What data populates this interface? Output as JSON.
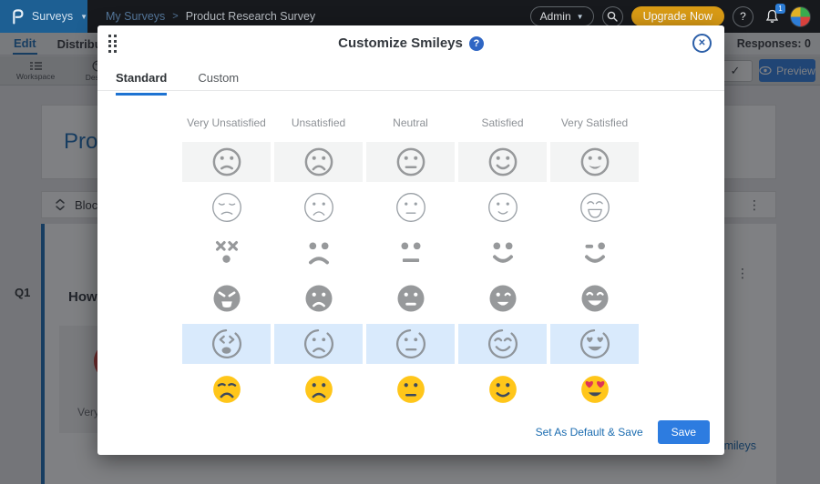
{
  "colors": {
    "navbar_bg": "#17191d",
    "logo_blue": "#1d5f93",
    "accent_blue": "#1a6bb3",
    "link_blue": "#1b6cb0",
    "save_blue": "#2d7ce0",
    "upgrade_orange": "#d99b15",
    "smiley_gray": "#97999b",
    "thin_gray": "#9aa0a6",
    "sketch_gray": "#8f959b",
    "emoji_yellow": "#ffc61a",
    "emoji_features": "#3e4a5c",
    "heart_red": "#dd3558",
    "cell_bg": "#f3f4f4",
    "selected_bg": "#d9eafc",
    "red_smiley": "#d8413c"
  },
  "navbar": {
    "logo": "P",
    "product_menu": "Surveys",
    "breadcrumb": {
      "parent": "My Surveys",
      "sep": ">",
      "current": "Product Research Survey"
    },
    "admin_label": "Admin",
    "upgrade_label": "Upgrade Now",
    "help_glyph": "?",
    "bell_badge": "1"
  },
  "subnav": {
    "tab_edit": "Edit",
    "tab_distribute": "Distribute",
    "right_fragment": "s",
    "responses_label": "Responses: 0"
  },
  "toolbar": {
    "workspace_label": "Workspace",
    "design_label": "Design",
    "check_glyph": "✓",
    "preview_label": "Preview"
  },
  "background": {
    "survey_title": "Product Research Survey",
    "block_label": "Block",
    "question_number": "Q1",
    "question_fragment": "How s",
    "option_label": "Very Unsatisfied",
    "smileys_link": "Customize Smileys"
  },
  "modal": {
    "title": "Customize Smileys",
    "help_glyph": "?",
    "close_glyph": "✕",
    "tabs": [
      {
        "label": "Standard",
        "active": true
      },
      {
        "label": "Custom",
        "active": false
      }
    ],
    "smiley_grid": {
      "columns": [
        "Very Unsatisfied",
        "Unsatisfied",
        "Neutral",
        "Satisfied",
        "Very Satisfied"
      ],
      "moods": [
        "very-unsatisfied",
        "unsatisfied",
        "neutral",
        "satisfied",
        "very-satisfied"
      ],
      "rows": [
        {
          "style": "outline-bold",
          "boxed": true,
          "selected": false
        },
        {
          "style": "outline-thin",
          "boxed": false,
          "selected": false
        },
        {
          "style": "abstract",
          "boxed": false,
          "selected": false
        },
        {
          "style": "solid",
          "boxed": false,
          "selected": false
        },
        {
          "style": "sketch",
          "boxed": false,
          "selected": true
        },
        {
          "style": "emoji",
          "boxed": false,
          "selected": false
        }
      ]
    },
    "footer": {
      "default_save_label": "Set As Default & Save",
      "save_label": "Save"
    }
  }
}
